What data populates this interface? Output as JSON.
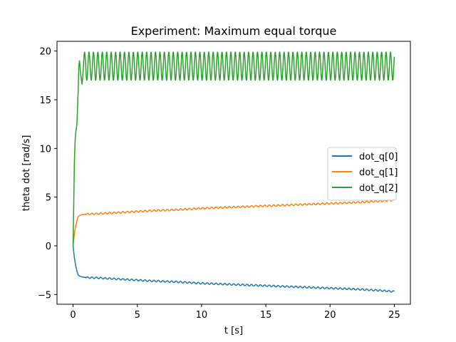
{
  "chart_data": {
    "type": "line",
    "title": "Experiment: Maximum equal torque",
    "xlabel": "t [s]",
    "ylabel": "theta dot [rad/s]",
    "xlim": [
      -1.25,
      26.25
    ],
    "ylim": [
      -6.0,
      21.0
    ],
    "xticks": [
      0,
      5,
      10,
      15,
      20,
      25
    ],
    "yticks": [
      -5,
      0,
      5,
      10,
      15,
      20
    ],
    "grid": false,
    "legend_position": "center-right",
    "series": [
      {
        "name": "dot_q[0]",
        "color": "#1f77b4",
        "x": [
          0,
          0.1,
          0.2,
          0.3,
          0.4,
          0.5,
          0.7,
          1.0,
          2,
          4,
          6,
          8,
          10,
          12,
          14,
          16,
          18,
          20,
          22,
          24,
          25
        ],
        "y": [
          0,
          -1.2,
          -2.0,
          -2.6,
          -3.0,
          -3.1,
          -3.2,
          -3.25,
          -3.3,
          -3.45,
          -3.6,
          -3.7,
          -3.85,
          -3.95,
          -4.05,
          -4.15,
          -4.25,
          -4.35,
          -4.45,
          -4.6,
          -4.7
        ],
        "oscillation_amplitude": 0.08
      },
      {
        "name": "dot_q[1]",
        "color": "#ff7f0e",
        "x": [
          0,
          0.1,
          0.2,
          0.3,
          0.4,
          0.5,
          0.7,
          1.0,
          2,
          4,
          6,
          8,
          10,
          12,
          14,
          16,
          18,
          20,
          22,
          24,
          25
        ],
        "y": [
          0,
          1.2,
          2.0,
          2.6,
          3.0,
          3.1,
          3.2,
          3.25,
          3.3,
          3.45,
          3.6,
          3.7,
          3.85,
          3.95,
          4.05,
          4.15,
          4.25,
          4.35,
          4.45,
          4.6,
          4.7
        ],
        "oscillation_amplitude": 0.08
      },
      {
        "name": "dot_q[2]",
        "color": "#2ca02c",
        "x": [
          0,
          0.05,
          0.1,
          0.15,
          0.2,
          0.3,
          0.4,
          0.45,
          0.5,
          0.6,
          0.7,
          0.8
        ],
        "y": [
          0,
          4.0,
          8.5,
          10.5,
          11.5,
          12.5,
          16.0,
          18.5,
          19.0,
          17.5,
          16.6,
          18.2
        ],
        "oscillation": {
          "from": 0.8,
          "to": 25.0,
          "low": 17.0,
          "high": 19.9,
          "period": 0.345
        }
      }
    ]
  }
}
